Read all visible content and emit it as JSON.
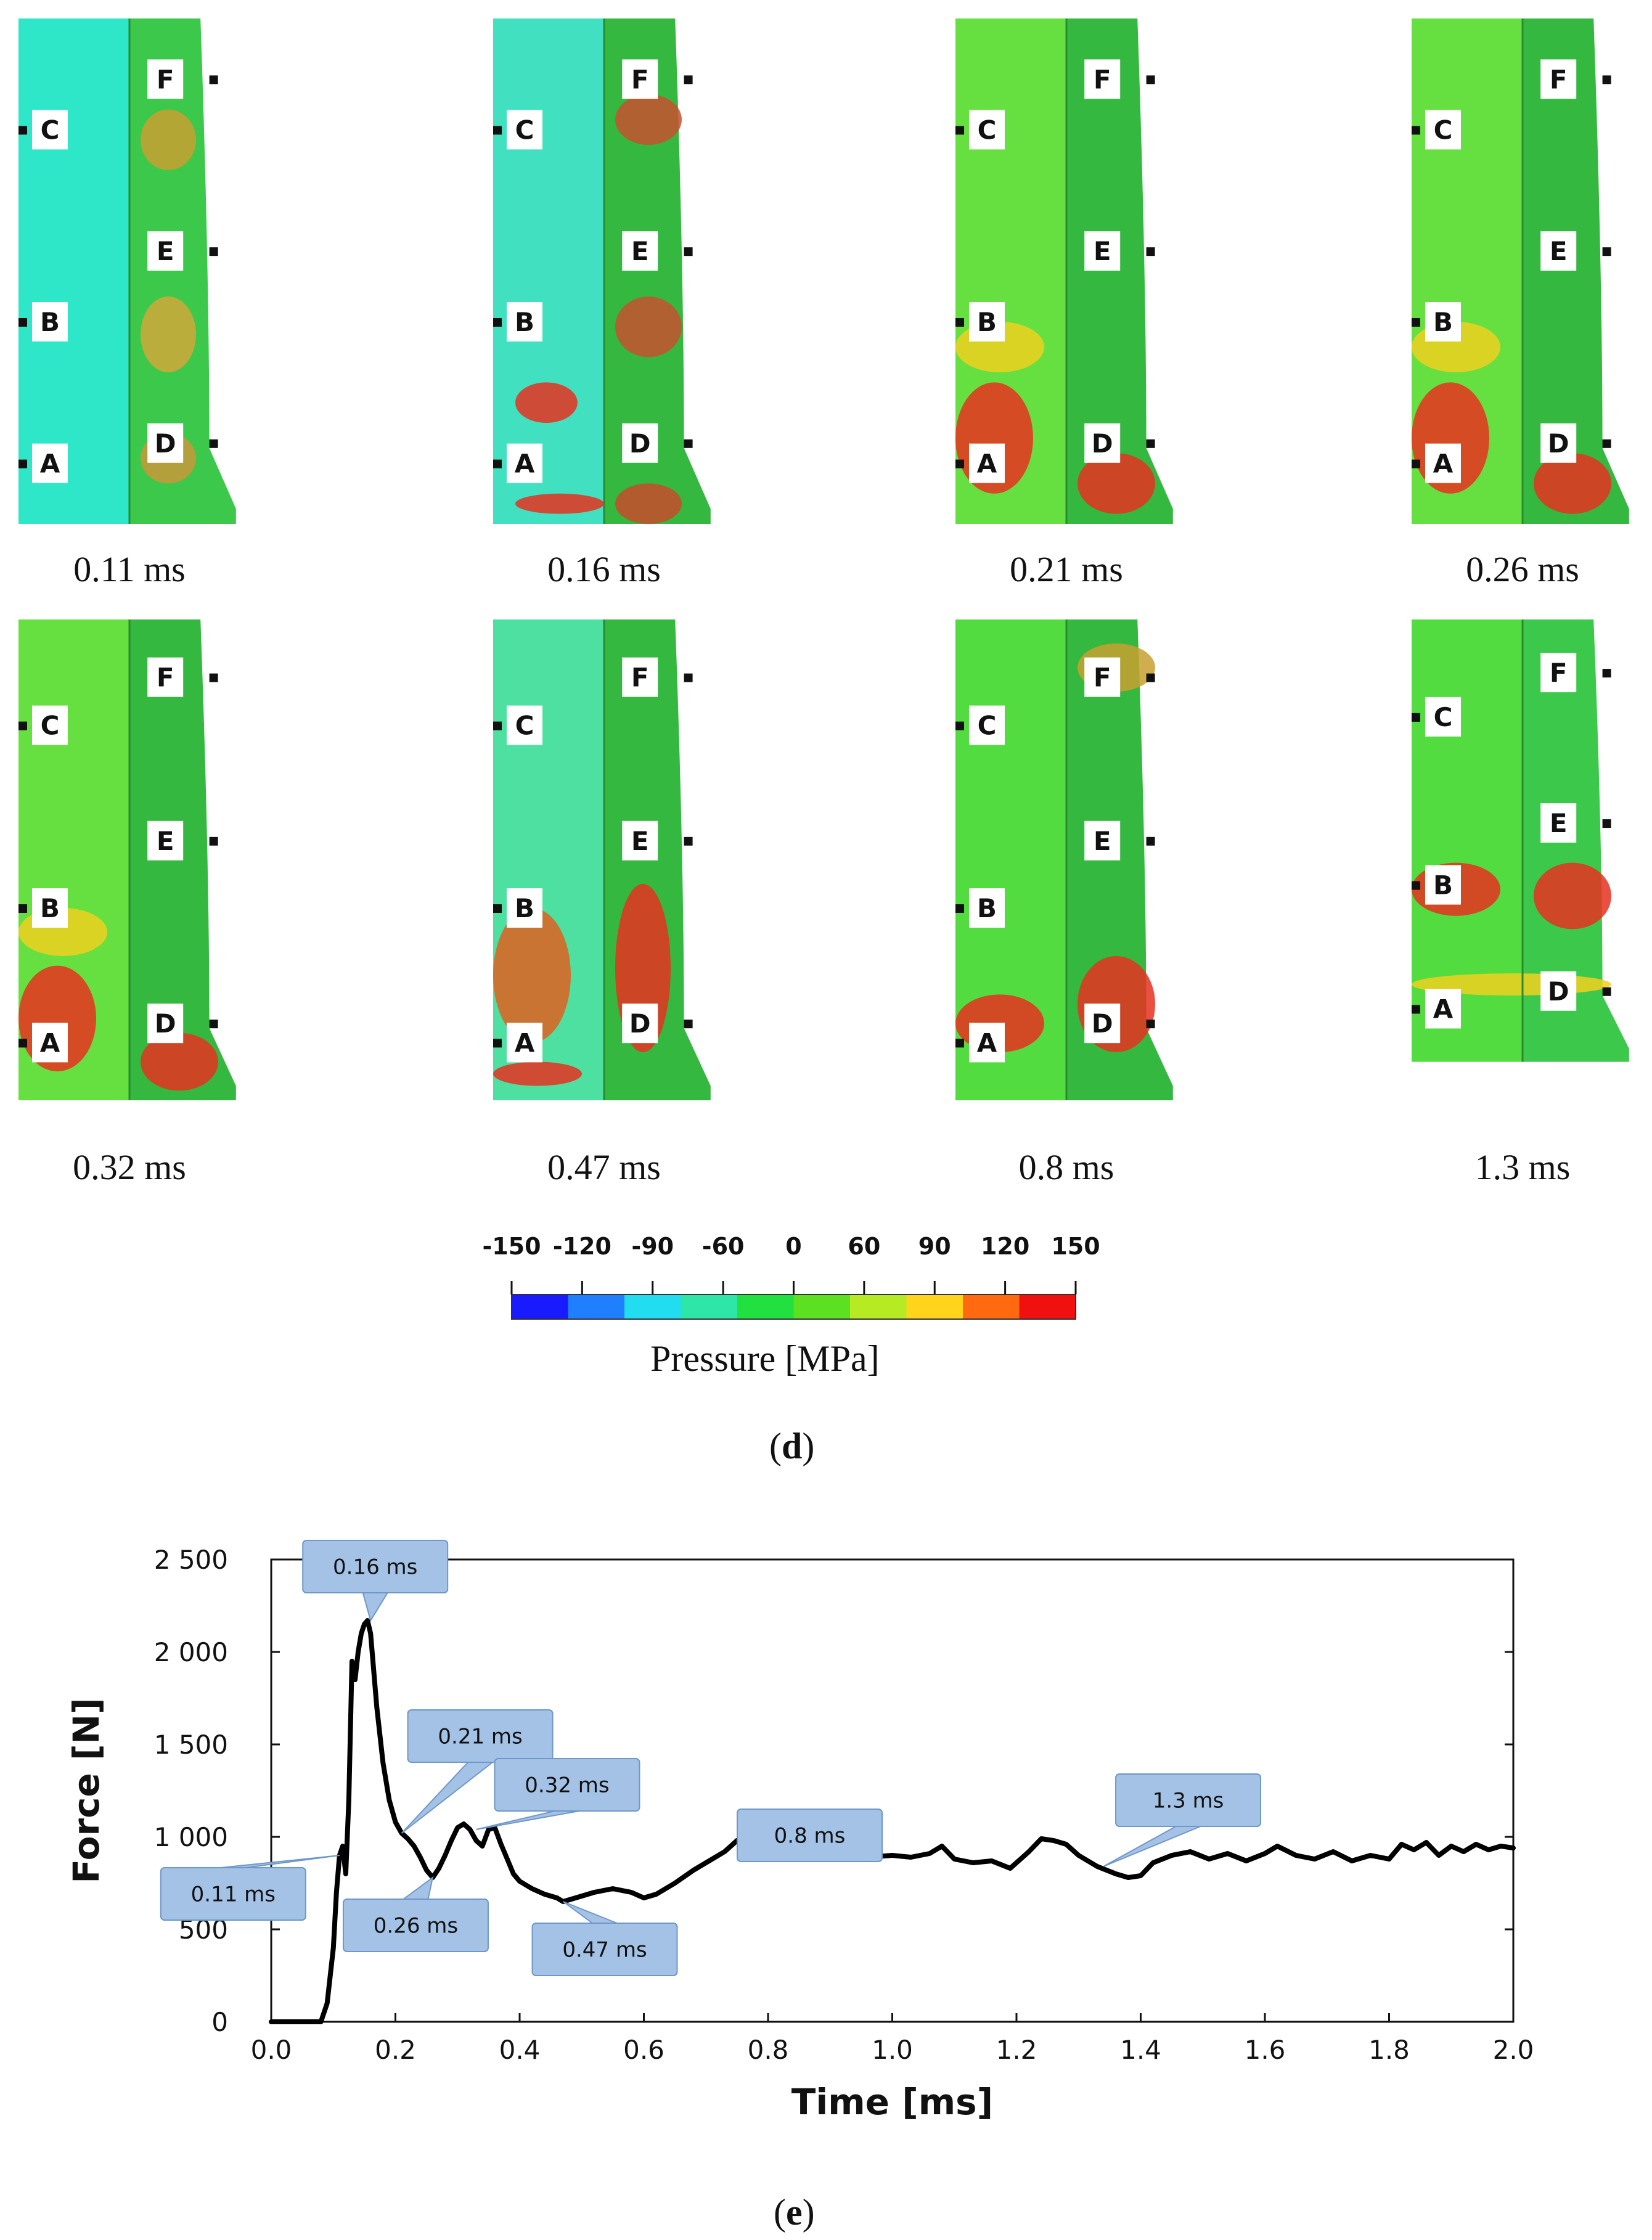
{
  "figure_d": {
    "label": "(d)",
    "letter": "d",
    "snapshots": [
      {
        "time": "0.11 ms",
        "markers": [
          "A",
          "B",
          "C",
          "D",
          "E",
          "F"
        ],
        "scheme": "early"
      },
      {
        "time": "0.16 ms",
        "markers": [
          "A",
          "B",
          "C",
          "D",
          "E",
          "F"
        ],
        "scheme": "peak"
      },
      {
        "time": "0.21 ms",
        "markers": [
          "A",
          "B",
          "C",
          "D",
          "E",
          "F"
        ],
        "scheme": "hot"
      },
      {
        "time": "0.26 ms",
        "markers": [
          "A",
          "B",
          "C",
          "D",
          "E",
          "F"
        ],
        "scheme": "hot"
      },
      {
        "time": "0.32 ms",
        "markers": [
          "A",
          "B",
          "C",
          "D",
          "E",
          "F"
        ],
        "scheme": "hot"
      },
      {
        "time": "0.47 ms",
        "markers": [
          "A",
          "B",
          "C",
          "D",
          "E",
          "F"
        ],
        "scheme": "mid"
      },
      {
        "time": "0.8 ms",
        "markers": [
          "A",
          "B",
          "C",
          "D",
          "E",
          "F"
        ],
        "scheme": "late"
      },
      {
        "time": "1.3 ms",
        "markers": [
          "A",
          "B",
          "C",
          "D",
          "E",
          "F"
        ],
        "scheme": "crushed"
      }
    ],
    "colorbar": {
      "ticks": [
        "-150",
        "-120",
        "-90",
        "-60",
        "0",
        "60",
        "90",
        "120",
        "150"
      ],
      "colors": [
        "#1a1aff",
        "#1f7fff",
        "#22dcf0",
        "#2ee6a8",
        "#22e040",
        "#5ee022",
        "#b6ea22",
        "#ffd41a",
        "#ff6a10",
        "#f01010"
      ],
      "title": "Pressure [MPa]"
    }
  },
  "figure_e": {
    "label": "(e)",
    "letter": "e"
  },
  "chart_data": {
    "type": "line",
    "title": "",
    "xlabel": "Time [ms]",
    "ylabel": "Force [N]",
    "xlim": [
      0.0,
      2.0
    ],
    "ylim": [
      0,
      2500
    ],
    "xticks": [
      "0.0",
      "0.2",
      "0.4",
      "0.6",
      "0.8",
      "1.0",
      "1.2",
      "1.4",
      "1.6",
      "1.8",
      "2.0"
    ],
    "yticks": [
      "0",
      "500",
      "1 000",
      "1 500",
      "2 000",
      "2 500"
    ],
    "ytick_values": [
      0,
      500,
      1000,
      1500,
      2000,
      2500
    ],
    "series": [
      {
        "name": "Force",
        "color": "#000000",
        "x": [
          0.0,
          0.02,
          0.04,
          0.06,
          0.08,
          0.09,
          0.1,
          0.105,
          0.11,
          0.115,
          0.12,
          0.125,
          0.13,
          0.135,
          0.14,
          0.145,
          0.15,
          0.155,
          0.16,
          0.17,
          0.18,
          0.19,
          0.2,
          0.21,
          0.22,
          0.23,
          0.24,
          0.25,
          0.26,
          0.27,
          0.28,
          0.29,
          0.3,
          0.31,
          0.32,
          0.33,
          0.34,
          0.35,
          0.36,
          0.37,
          0.38,
          0.39,
          0.4,
          0.42,
          0.44,
          0.46,
          0.47,
          0.5,
          0.52,
          0.55,
          0.58,
          0.6,
          0.62,
          0.65,
          0.68,
          0.7,
          0.73,
          0.75,
          0.77,
          0.79,
          0.8,
          0.82,
          0.84,
          0.86,
          0.88,
          0.9,
          0.93,
          0.96,
          1.0,
          1.03,
          1.06,
          1.08,
          1.1,
          1.13,
          1.16,
          1.19,
          1.22,
          1.24,
          1.26,
          1.28,
          1.3,
          1.33,
          1.36,
          1.38,
          1.4,
          1.42,
          1.45,
          1.48,
          1.51,
          1.54,
          1.57,
          1.6,
          1.62,
          1.65,
          1.68,
          1.71,
          1.74,
          1.77,
          1.8,
          1.82,
          1.84,
          1.86,
          1.88,
          1.9,
          1.92,
          1.94,
          1.96,
          1.98,
          2.0
        ],
        "y": [
          0,
          0,
          0,
          0,
          0,
          100,
          400,
          700,
          900,
          950,
          800,
          1200,
          1950,
          1850,
          2000,
          2100,
          2150,
          2170,
          2100,
          1700,
          1400,
          1200,
          1080,
          1020,
          990,
          950,
          890,
          820,
          780,
          830,
          900,
          980,
          1050,
          1070,
          1040,
          980,
          950,
          1040,
          1050,
          960,
          880,
          800,
          760,
          720,
          690,
          670,
          650,
          680,
          700,
          720,
          700,
          670,
          690,
          750,
          820,
          860,
          920,
          980,
          1020,
          1040,
          1050,
          1040,
          1000,
          930,
          900,
          890,
          900,
          890,
          900,
          890,
          910,
          950,
          880,
          860,
          870,
          830,
          920,
          990,
          980,
          960,
          900,
          840,
          800,
          780,
          790,
          860,
          900,
          920,
          880,
          910,
          870,
          910,
          950,
          900,
          880,
          920,
          870,
          900,
          880,
          960,
          930,
          970,
          900,
          950,
          920,
          960,
          930,
          950,
          940
        ]
      }
    ],
    "annotations": [
      {
        "label": "0.11 ms",
        "x": 0.11,
        "y": 900
      },
      {
        "label": "0.16 ms",
        "x": 0.16,
        "y": 2170
      },
      {
        "label": "0.21 ms",
        "x": 0.21,
        "y": 1020
      },
      {
        "label": "0.26 ms",
        "x": 0.26,
        "y": 780
      },
      {
        "label": "0.32 ms",
        "x": 0.33,
        "y": 1040
      },
      {
        "label": "0.47 ms",
        "x": 0.47,
        "y": 650
      },
      {
        "label": "0.8 ms",
        "x": 0.8,
        "y": 1050
      },
      {
        "label": "1.3 ms",
        "x": 1.34,
        "y": 840
      }
    ]
  }
}
